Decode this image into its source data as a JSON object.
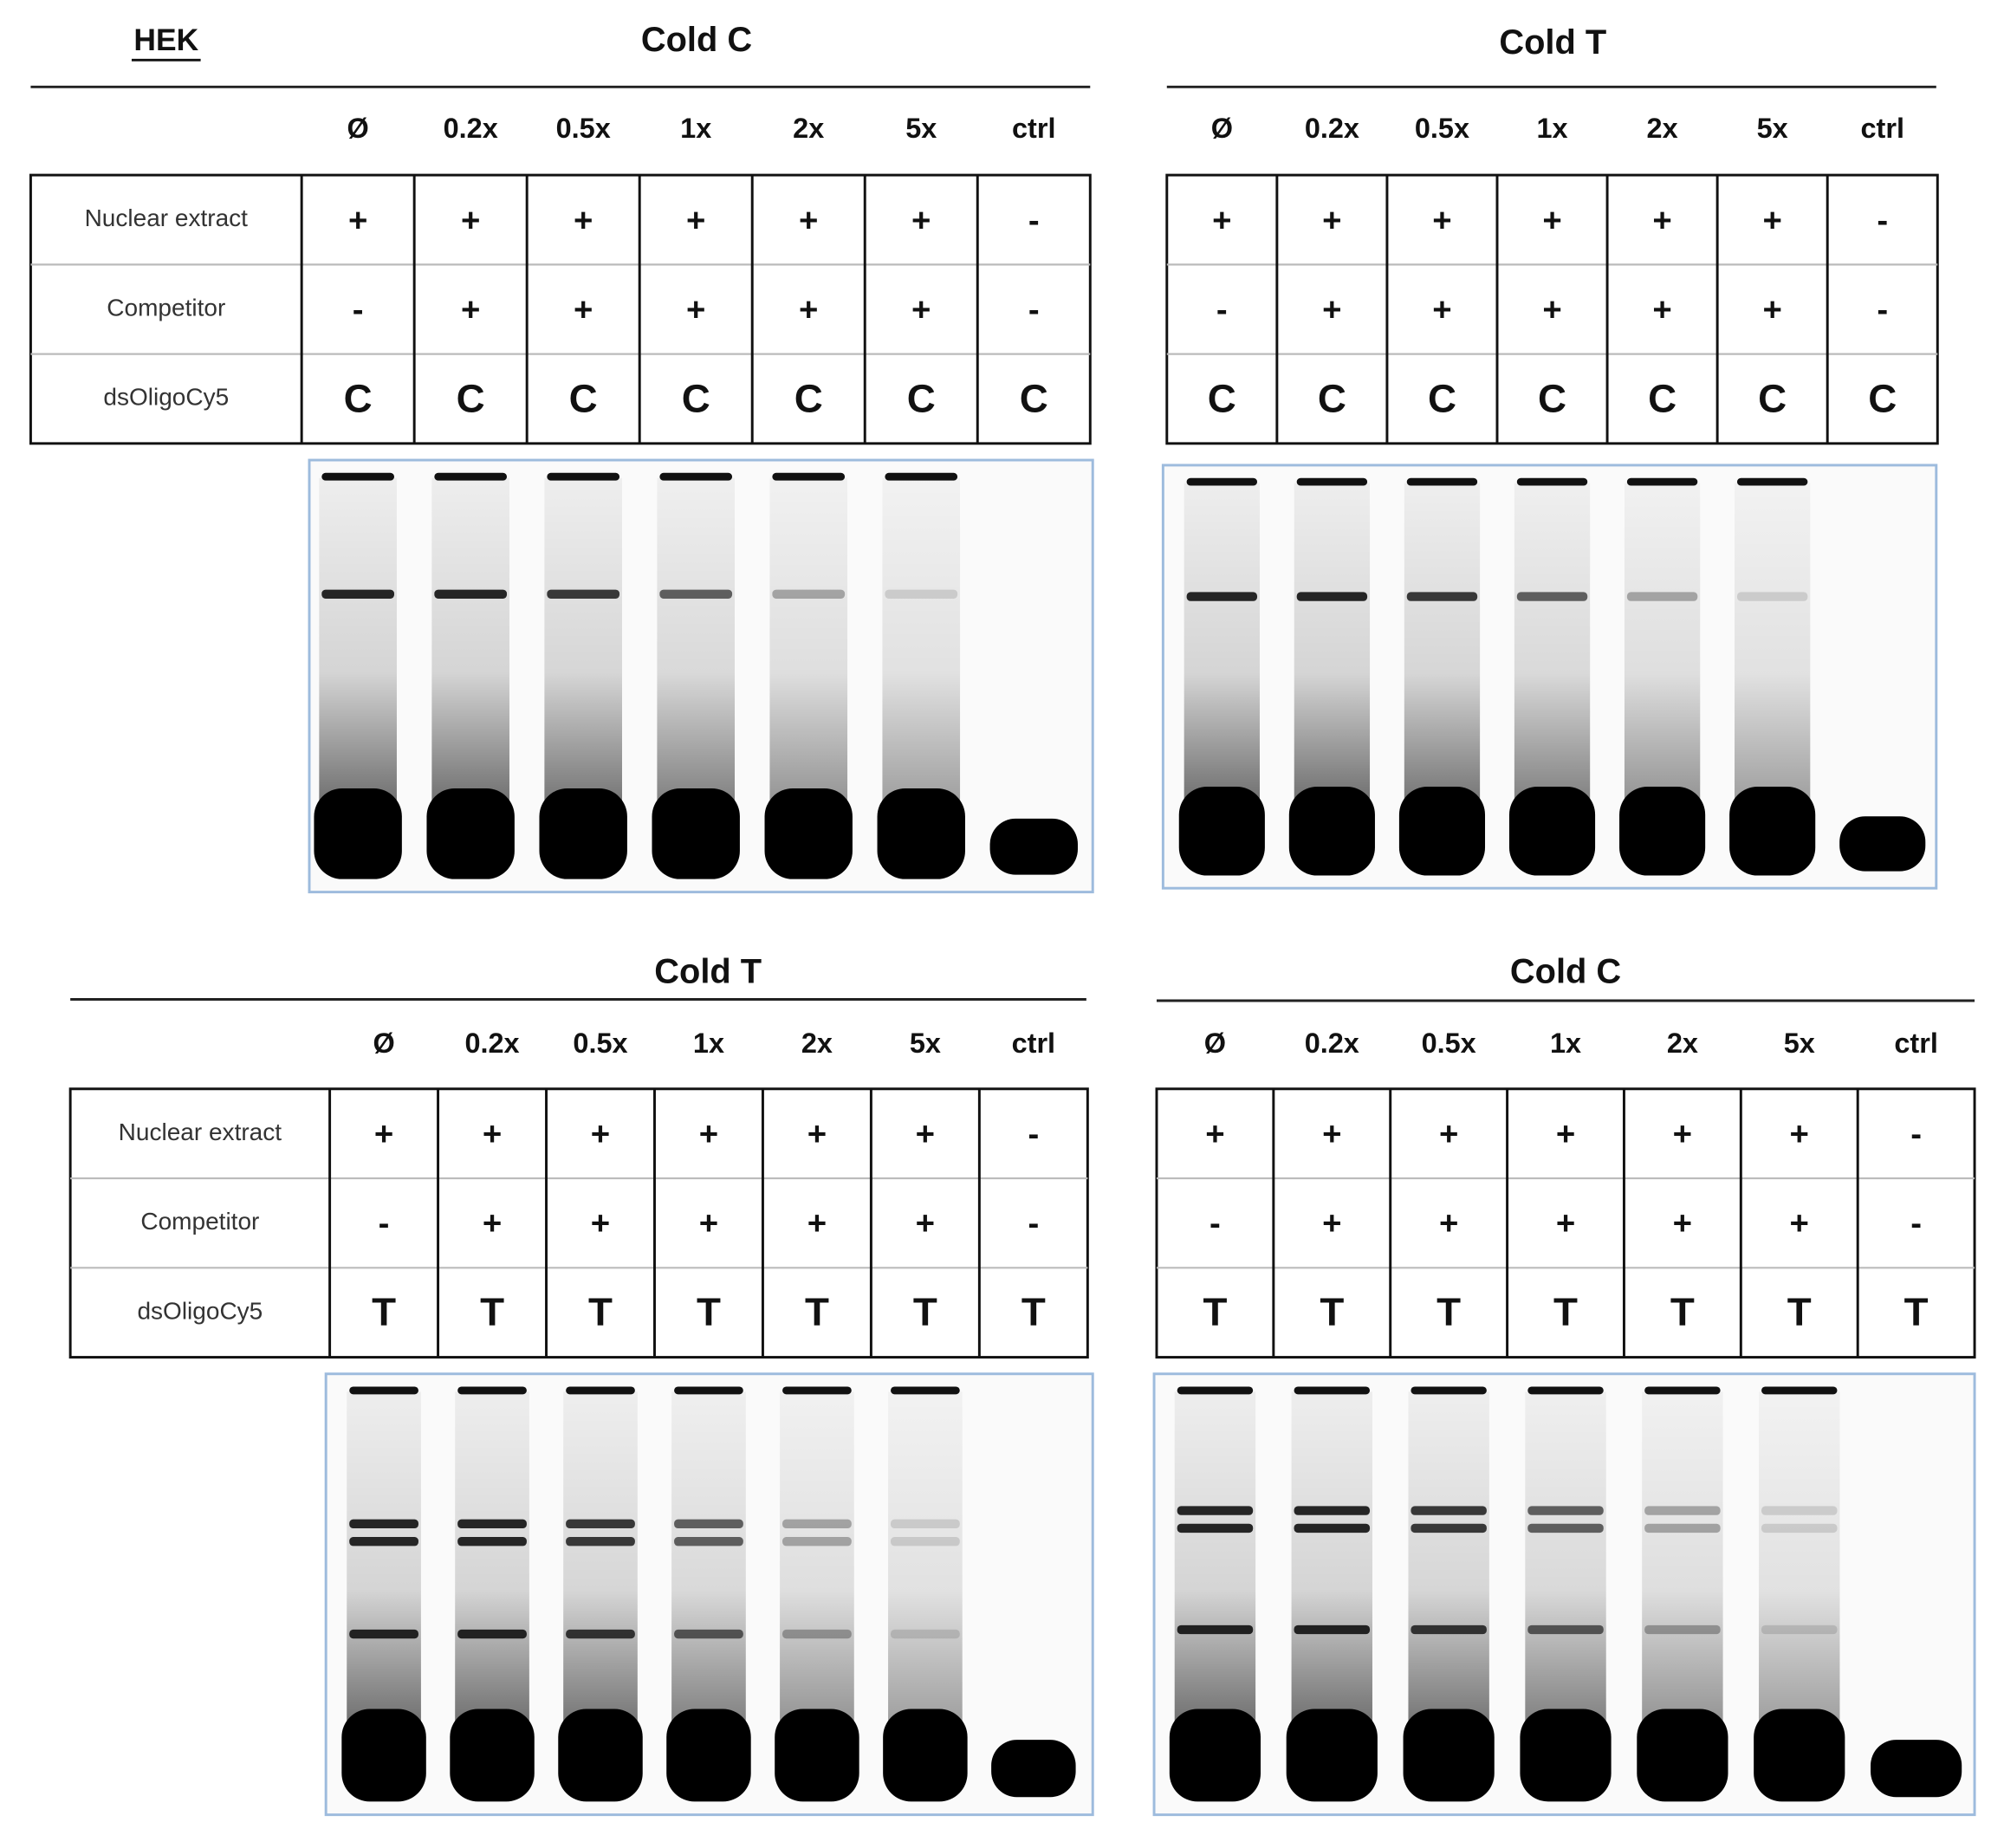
{
  "label": "HEK",
  "panels": [
    {
      "title": "Cold C",
      "lanes": [
        "Ø",
        "0.2x",
        "0.5x",
        "1x",
        "2x",
        "5x",
        "ctrl"
      ],
      "rows": [
        {
          "label": "Nuclear extract",
          "cells": [
            "+",
            "+",
            "+",
            "+",
            "+",
            "+",
            "-"
          ]
        },
        {
          "label": "Competitor",
          "cells": [
            "-",
            "+",
            "+",
            "+",
            "+",
            "+",
            "-"
          ]
        },
        {
          "label": "dsOligoCy5",
          "cells": [
            "C",
            "C",
            "C",
            "C",
            "C",
            "C",
            "C"
          ]
        }
      ]
    },
    {
      "title": "Cold T",
      "lanes": [
        "Ø",
        "0.2x",
        "0.5x",
        "1x",
        "2x",
        "5x",
        "ctrl"
      ],
      "rows": [
        {
          "cells": [
            "+",
            "+",
            "+",
            "+",
            "+",
            "+",
            "-"
          ]
        },
        {
          "cells": [
            "-",
            "+",
            "+",
            "+",
            "+",
            "+",
            "-"
          ]
        },
        {
          "cells": [
            "C",
            "C",
            "C",
            "C",
            "C",
            "C",
            "C"
          ]
        }
      ]
    },
    {
      "title": "Cold T",
      "lanes": [
        "Ø",
        "0.2x",
        "0.5x",
        "1x",
        "2x",
        "5x",
        "ctrl"
      ],
      "rows": [
        {
          "label": "Nuclear extract",
          "cells": [
            "+",
            "+",
            "+",
            "+",
            "+",
            "+",
            "-"
          ]
        },
        {
          "label": "Competitor",
          "cells": [
            "-",
            "+",
            "+",
            "+",
            "+",
            "+",
            "-"
          ]
        },
        {
          "label": "dsOligoCy5",
          "cells": [
            "T",
            "T",
            "T",
            "T",
            "T",
            "T",
            "T"
          ]
        }
      ]
    },
    {
      "title": "Cold C",
      "lanes": [
        "Ø",
        "0.2x",
        "0.5x",
        "1x",
        "2x",
        "5x",
        "ctrl"
      ],
      "rows": [
        {
          "cells": [
            "+",
            "+",
            "+",
            "+",
            "+",
            "+",
            "-"
          ]
        },
        {
          "cells": [
            "-",
            "+",
            "+",
            "+",
            "+",
            "+",
            "-"
          ]
        },
        {
          "cells": [
            "T",
            "T",
            "T",
            "T",
            "T",
            "T",
            "T"
          ]
        }
      ]
    }
  ]
}
